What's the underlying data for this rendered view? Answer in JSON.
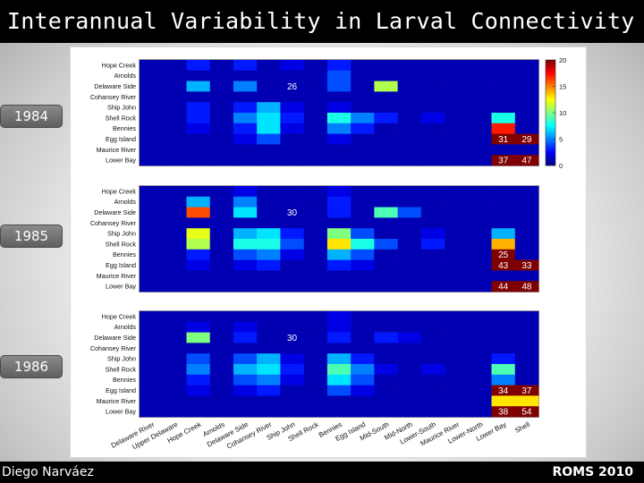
{
  "title": "Interannual Variability in Larval Connectivity",
  "footer": {
    "author": "Diego Narváez",
    "conference": "ROMS 2010"
  },
  "colors": {
    "panel_bg": "#ffffff",
    "title_bg": "#000000",
    "jet_colormap": [
      "#00007f",
      "#0000ff",
      "#007fff",
      "#00ffff",
      "#7fff7f",
      "#ffff00",
      "#ff7f00",
      "#ff0000",
      "#7f0000"
    ]
  },
  "chart_data": {
    "type": "heatmap",
    "row_labels": [
      "Hope Creek",
      "Arnolds",
      "Delaware Side",
      "Cohansey River",
      "Ship John",
      "Shell Rock",
      "Bennies",
      "Egg Island",
      "Maurice River",
      "Lower Bay"
    ],
    "col_labels": [
      "Delaware River",
      "Upper Delaware",
      "Hope Creek",
      "Arnolds",
      "Delaware Side",
      "Cohansey River",
      "Ship John",
      "Shell Rock",
      "Bennies",
      "Egg Island",
      "Mid-South",
      "Mid-North",
      "Lower-South",
      "Maurice River",
      "Lower-North",
      "Lower Bay",
      "Shell"
    ],
    "colorbar": {
      "min": 0,
      "max": 20,
      "ticks": [
        0,
        5,
        10,
        15,
        20
      ]
    },
    "panels": [
      {
        "year": "1984",
        "values": [
          [
            1,
            1,
            3,
            1,
            3,
            1,
            2,
            1,
            3,
            1,
            1,
            1,
            1,
            1,
            1,
            1,
            1
          ],
          [
            1,
            1,
            1,
            1,
            1,
            1,
            1,
            1,
            4,
            1,
            1,
            1,
            1,
            1,
            1,
            1,
            1
          ],
          [
            1,
            1,
            6,
            1,
            5,
            1,
            1,
            1,
            4,
            1,
            11,
            1,
            1,
            1,
            1,
            1,
            1
          ],
          [
            1,
            1,
            1,
            1,
            1,
            1,
            1,
            1,
            1,
            1,
            1,
            1,
            1,
            1,
            1,
            1,
            1
          ],
          [
            1,
            1,
            3,
            1,
            3,
            6,
            2,
            1,
            2,
            1,
            1,
            1,
            1,
            1,
            1,
            1,
            1
          ],
          [
            1,
            1,
            3,
            1,
            5,
            7,
            3,
            1,
            8,
            5,
            3,
            1,
            2,
            1,
            1,
            8,
            1
          ],
          [
            1,
            1,
            2,
            1,
            3,
            7,
            2,
            1,
            5,
            3,
            1,
            1,
            1,
            1,
            1,
            17,
            1
          ],
          [
            1,
            1,
            1,
            1,
            2,
            4,
            1,
            1,
            2,
            1,
            1,
            1,
            1,
            1,
            1,
            20,
            20
          ],
          [
            1,
            1,
            1,
            1,
            1,
            1,
            1,
            1,
            1,
            1,
            1,
            1,
            1,
            1,
            1,
            1,
            1
          ],
          [
            1,
            1,
            1,
            1,
            1,
            1,
            1,
            1,
            1,
            1,
            1,
            1,
            1,
            1,
            1,
            20,
            20
          ]
        ],
        "annotations": [
          {
            "row": 2,
            "col": 6,
            "text": "26"
          },
          {
            "row": 7,
            "col": 15,
            "text": "31"
          },
          {
            "row": 7,
            "col": 16,
            "text": "29"
          },
          {
            "row": 9,
            "col": 15,
            "text": "37"
          },
          {
            "row": 9,
            "col": 16,
            "text": "47"
          }
        ]
      },
      {
        "year": "1985",
        "values": [
          [
            1,
            1,
            1,
            1,
            2,
            1,
            1,
            1,
            2,
            1,
            1,
            1,
            1,
            1,
            1,
            1,
            1
          ],
          [
            1,
            1,
            6,
            1,
            5,
            1,
            1,
            1,
            3,
            1,
            1,
            1,
            1,
            1,
            1,
            1,
            1
          ],
          [
            1,
            1,
            16,
            1,
            7,
            1,
            1,
            1,
            3,
            1,
            9,
            4,
            1,
            1,
            1,
            1,
            1
          ],
          [
            1,
            1,
            1,
            1,
            1,
            1,
            1,
            1,
            1,
            1,
            1,
            1,
            1,
            1,
            1,
            1,
            1
          ],
          [
            1,
            1,
            12,
            1,
            6,
            7,
            3,
            1,
            10,
            4,
            1,
            1,
            2,
            1,
            1,
            6,
            1
          ],
          [
            1,
            1,
            11,
            1,
            8,
            8,
            4,
            1,
            13,
            8,
            4,
            1,
            3,
            1,
            1,
            14,
            1
          ],
          [
            1,
            1,
            3,
            1,
            4,
            5,
            2,
            1,
            6,
            4,
            1,
            1,
            1,
            1,
            1,
            20,
            1
          ],
          [
            1,
            1,
            2,
            1,
            2,
            3,
            1,
            1,
            3,
            2,
            1,
            1,
            1,
            1,
            1,
            20,
            20
          ],
          [
            1,
            1,
            1,
            1,
            1,
            1,
            1,
            1,
            1,
            1,
            1,
            1,
            1,
            1,
            1,
            1,
            1
          ],
          [
            1,
            1,
            1,
            1,
            1,
            1,
            1,
            1,
            1,
            1,
            1,
            1,
            1,
            1,
            1,
            20,
            20
          ]
        ],
        "annotations": [
          {
            "row": 2,
            "col": 6,
            "text": "30"
          },
          {
            "row": 6,
            "col": 15,
            "text": "25"
          },
          {
            "row": 7,
            "col": 15,
            "text": "43"
          },
          {
            "row": 7,
            "col": 16,
            "text": "33"
          },
          {
            "row": 9,
            "col": 15,
            "text": "44"
          },
          {
            "row": 9,
            "col": 16,
            "text": "48"
          }
        ]
      },
      {
        "year": "1986",
        "values": [
          [
            1,
            1,
            1,
            1,
            1,
            1,
            1,
            1,
            2,
            1,
            1,
            1,
            1,
            1,
            1,
            1,
            1
          ],
          [
            1,
            1,
            2,
            1,
            2,
            1,
            1,
            1,
            2,
            1,
            1,
            1,
            1,
            1,
            1,
            1,
            1
          ],
          [
            1,
            1,
            10,
            1,
            3,
            1,
            1,
            1,
            3,
            1,
            3,
            2,
            1,
            1,
            1,
            1,
            1
          ],
          [
            1,
            1,
            1,
            1,
            1,
            1,
            1,
            1,
            1,
            1,
            1,
            1,
            1,
            1,
            1,
            1,
            1
          ],
          [
            1,
            1,
            4,
            1,
            4,
            6,
            2,
            1,
            6,
            3,
            1,
            1,
            1,
            1,
            1,
            3,
            1
          ],
          [
            1,
            1,
            5,
            1,
            6,
            7,
            3,
            1,
            9,
            5,
            2,
            1,
            2,
            1,
            1,
            9,
            1
          ],
          [
            1,
            1,
            3,
            1,
            4,
            5,
            2,
            1,
            7,
            4,
            1,
            1,
            1,
            1,
            1,
            5,
            1
          ],
          [
            1,
            1,
            2,
            1,
            2,
            3,
            1,
            1,
            4,
            2,
            1,
            1,
            1,
            1,
            1,
            20,
            20
          ],
          [
            1,
            1,
            1,
            1,
            1,
            1,
            1,
            1,
            1,
            1,
            1,
            1,
            1,
            1,
            1,
            13,
            13
          ],
          [
            1,
            1,
            1,
            1,
            1,
            1,
            1,
            1,
            1,
            1,
            1,
            1,
            1,
            1,
            1,
            20,
            20
          ]
        ],
        "annotations": [
          {
            "row": 2,
            "col": 6,
            "text": "30"
          },
          {
            "row": 7,
            "col": 15,
            "text": "34"
          },
          {
            "row": 7,
            "col": 16,
            "text": "37"
          },
          {
            "row": 9,
            "col": 15,
            "text": "38"
          },
          {
            "row": 9,
            "col": 16,
            "text": "54"
          }
        ]
      }
    ]
  }
}
